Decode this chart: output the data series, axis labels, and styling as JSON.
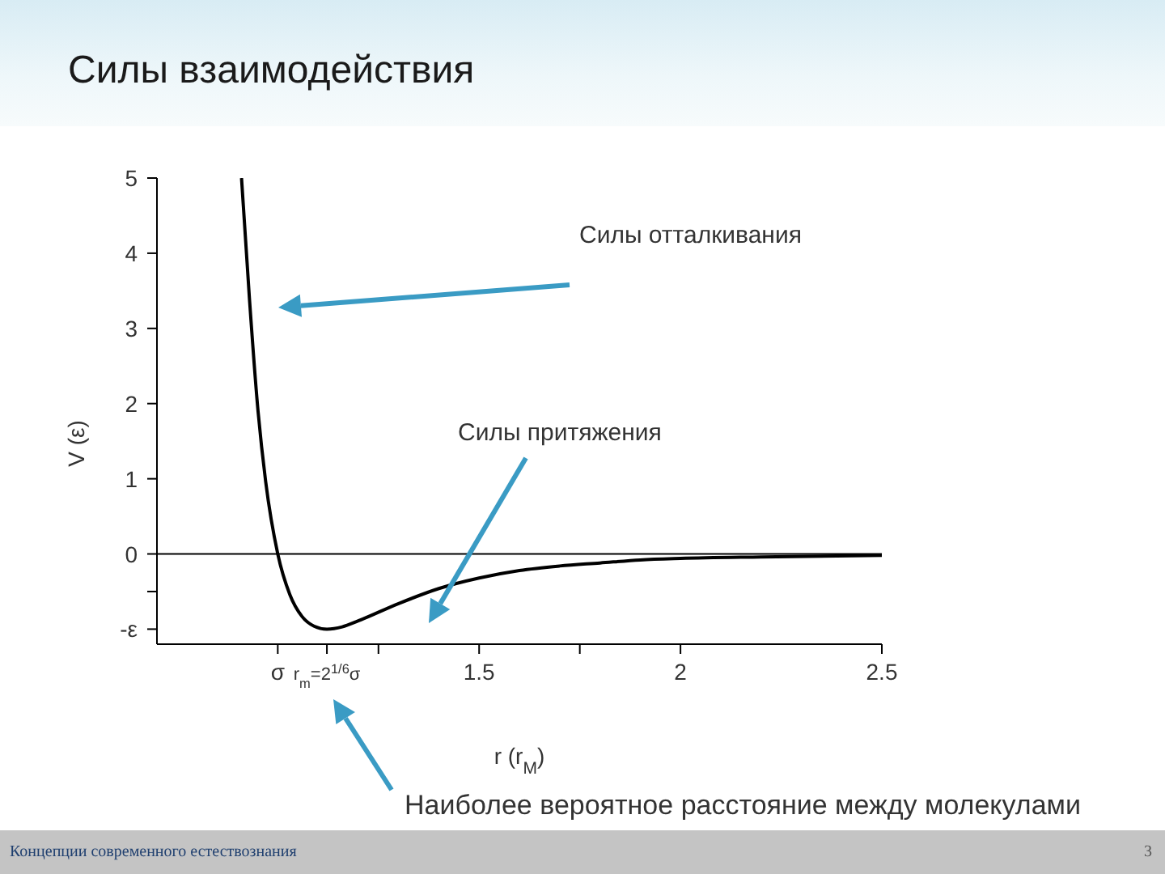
{
  "chart_data": {
    "type": "line",
    "title": "Силы взаимодействия",
    "xlabel": "r (r$_{M}$)",
    "ylabel": "V (ε)",
    "x": [
      0.91,
      0.93,
      0.95,
      0.97,
      1.0,
      1.03,
      1.06,
      1.09,
      1.122,
      1.16,
      1.2,
      1.3,
      1.4,
      1.5,
      1.6,
      1.7,
      1.8,
      1.9,
      2.0,
      2.2,
      2.5
    ],
    "series": [
      {
        "color": "#000000",
        "values": [
          5.0,
          3.37,
          1.96,
          0.96,
          0,
          -0.54,
          -0.83,
          -0.96,
          -1,
          -0.97,
          -0.89,
          -0.66,
          -0.46,
          -0.32,
          -0.22,
          -0.16,
          -0.12,
          -0.08,
          -0.06,
          -0.04,
          -0.02
        ]
      }
    ],
    "xlim": [
      0.7,
      2.5
    ],
    "xticks": [
      {
        "value": 1,
        "label": "σ"
      },
      {
        "value": 1.122,
        "label": "r$_{m}$=2$^{1/6}$σ"
      },
      {
        "value": 1.25,
        "label": null
      },
      1.5,
      {
        "value": 1.75,
        "label": null
      },
      2,
      2.5
    ],
    "ylim": [
      -1.2,
      5
    ],
    "yticks": [
      {
        "value": -1,
        "label": "-ε"
      },
      {
        "value": -0.5,
        "label": null
      },
      0,
      1,
      2,
      3,
      4,
      5
    ],
    "ref_lines": [
      {
        "axis": "y",
        "value": 0,
        "color": "#000000"
      }
    ],
    "grid": false,
    "legend": false,
    "marker": "none",
    "line_style": "solid",
    "annotations": [
      "Силы отталкивания",
      "Силы притяжения",
      "Наиболее вероятное расстояние между молекулами",
      "Концепции современного естествознания",
      "3"
    ]
  }
}
